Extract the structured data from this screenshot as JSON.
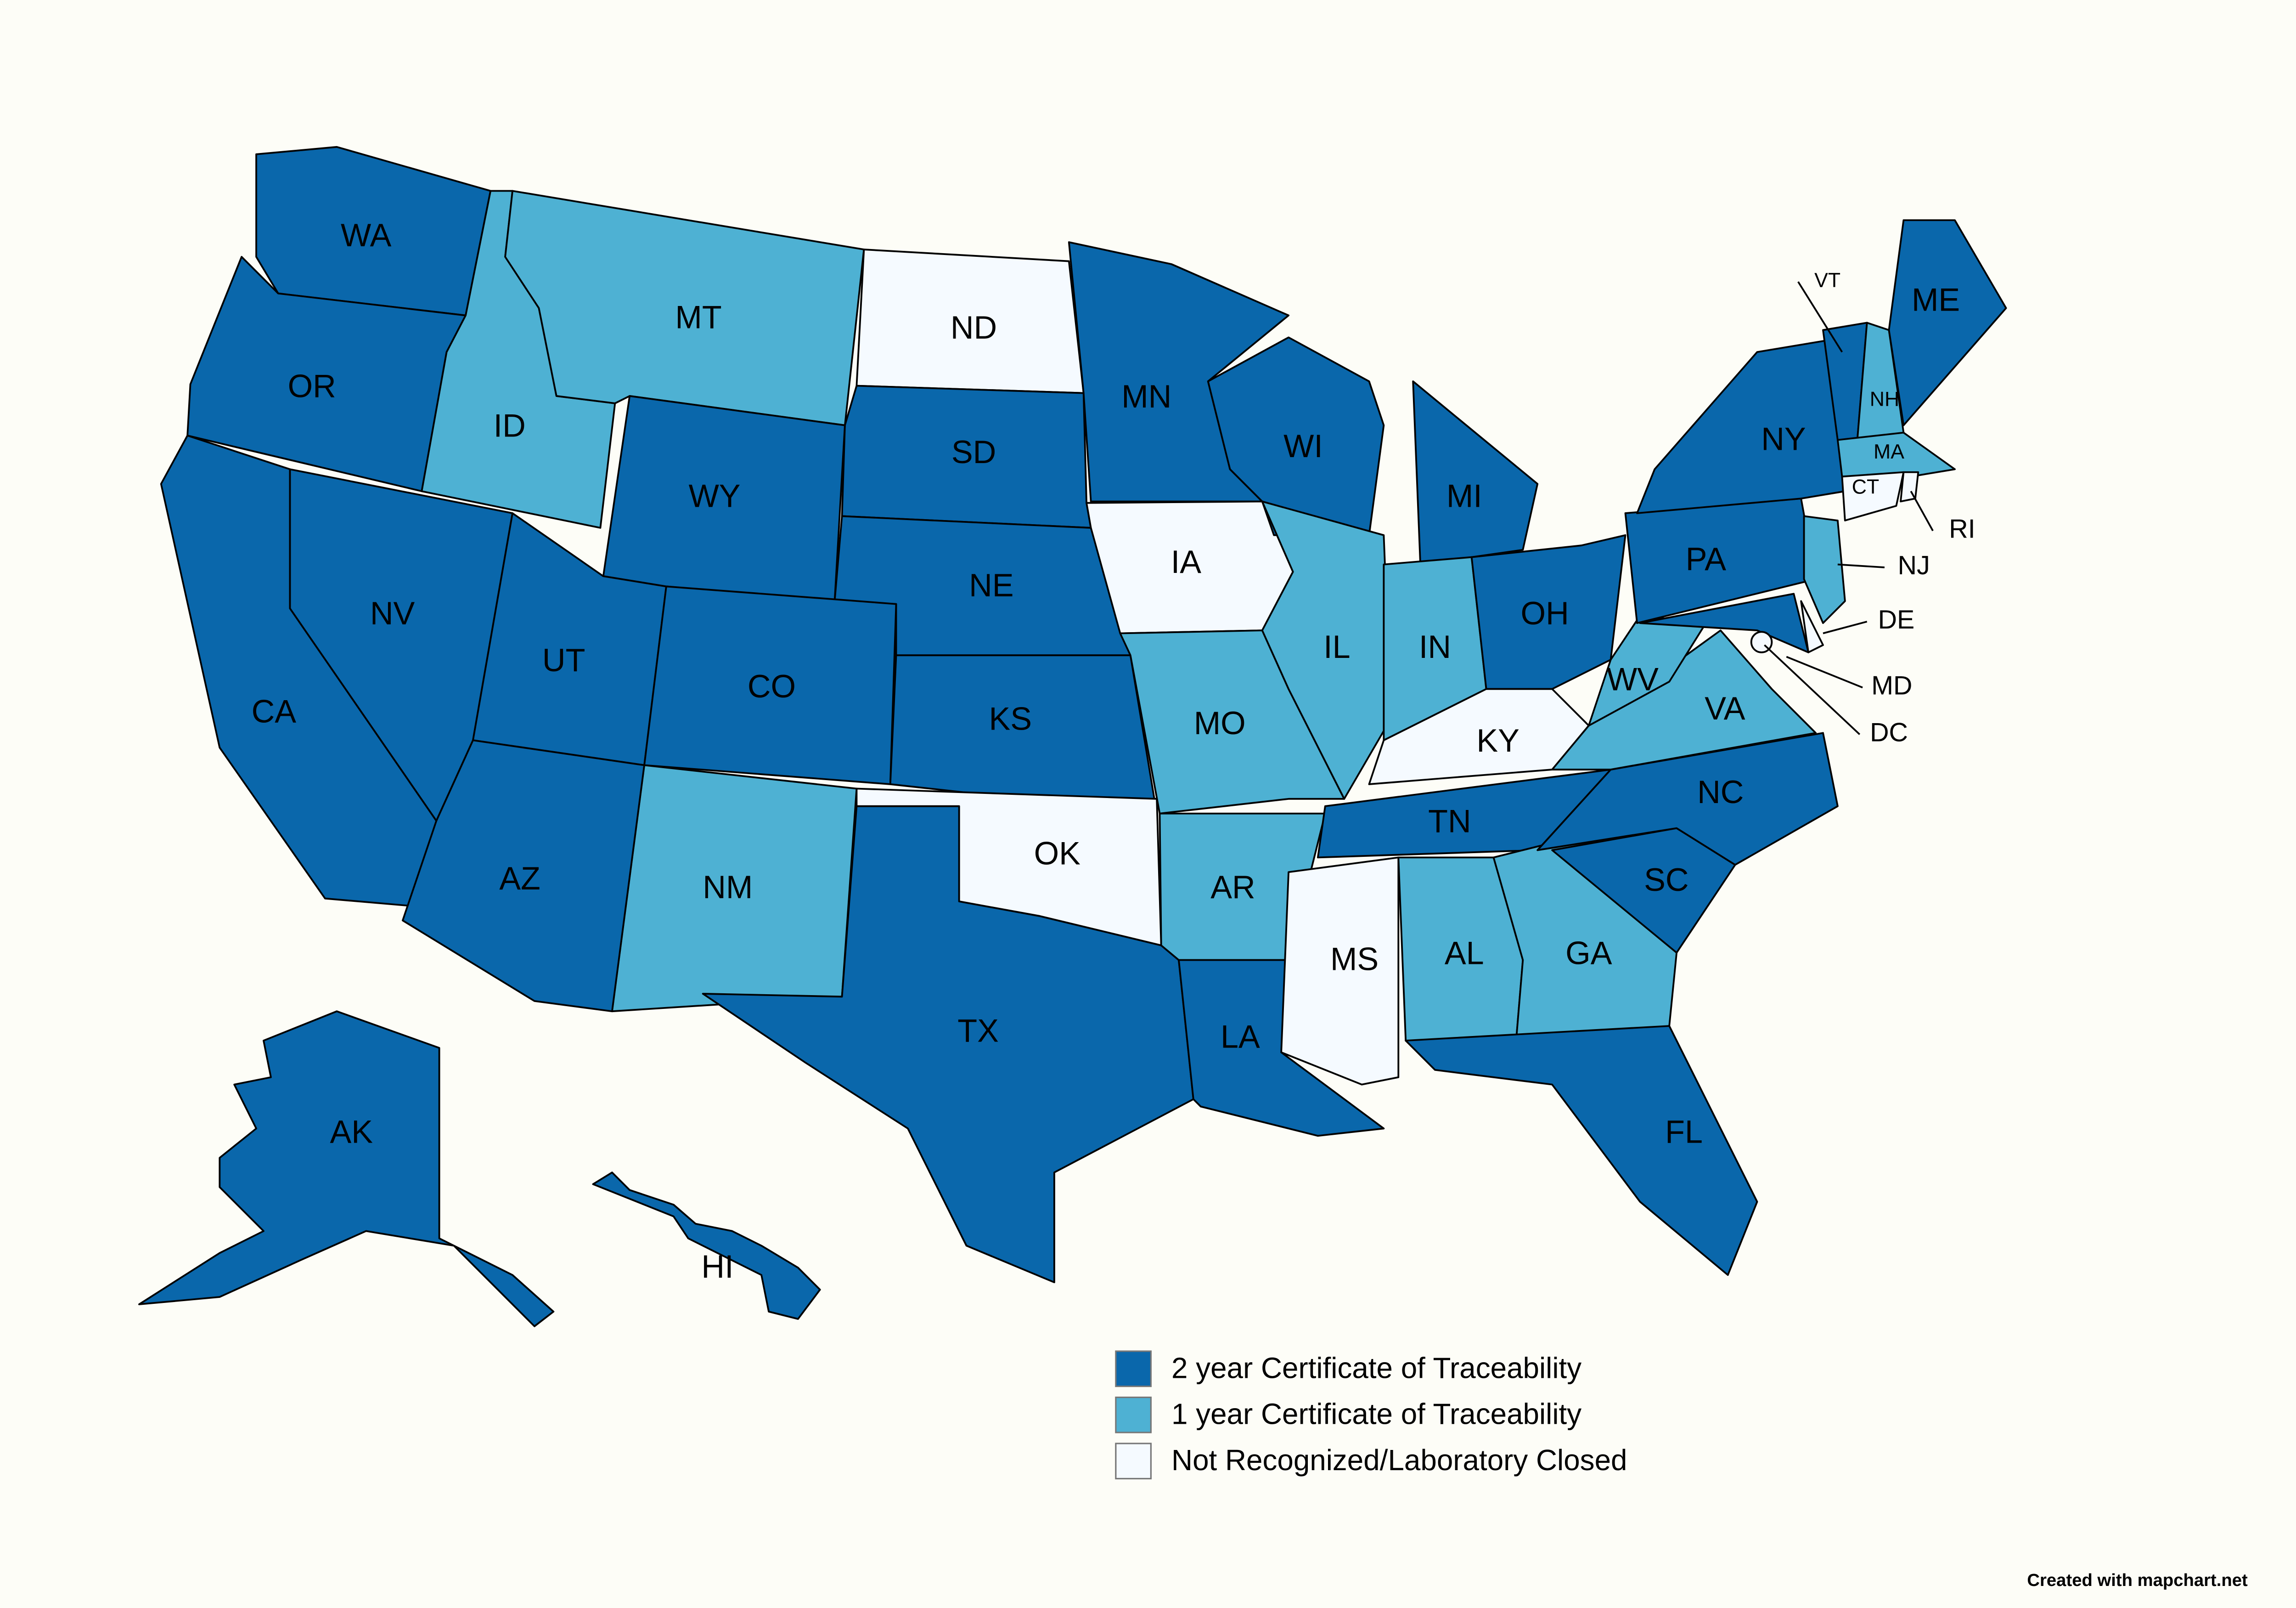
{
  "states": [
    {
      "label": "WA",
      "color": "#0a67ab"
    },
    {
      "label": "OR",
      "color": "#0a67ab"
    },
    {
      "label": "ID",
      "color": "#4eb1d3"
    },
    {
      "label": "MT",
      "color": "#4eb1d3"
    },
    {
      "label": "ND",
      "color": "#f5faff"
    },
    {
      "label": "SD",
      "color": "#0a67ab"
    },
    {
      "label": "WY",
      "color": "#0a67ab"
    },
    {
      "label": "NE",
      "color": "#0a67ab"
    },
    {
      "label": "NV",
      "color": "#0a67ab"
    },
    {
      "label": "CA",
      "color": "#0a67ab"
    },
    {
      "label": "UT",
      "color": "#0a67ab"
    },
    {
      "label": "CO",
      "color": "#0a67ab"
    },
    {
      "label": "KS",
      "color": "#0a67ab"
    },
    {
      "label": "OK",
      "color": "#f5faff"
    },
    {
      "label": "NM",
      "color": "#4eb1d3"
    },
    {
      "label": "AZ",
      "color": "#0a67ab"
    },
    {
      "label": "TX",
      "color": "#0a67ab"
    },
    {
      "label": "MN",
      "color": "#0a67ab"
    },
    {
      "label": "IA",
      "color": "#f5faff"
    },
    {
      "label": "MO",
      "color": "#4eb1d3"
    },
    {
      "label": "AR",
      "color": "#4eb1d3"
    },
    {
      "label": "LA",
      "color": "#0a67ab"
    },
    {
      "label": "WI",
      "color": "#0a67ab"
    },
    {
      "label": "IL",
      "color": "#4eb1d3"
    },
    {
      "label": "MI",
      "color": "#0a67ab"
    },
    {
      "label": "IN",
      "color": "#4eb1d3"
    },
    {
      "label": "OH",
      "color": "#0a67ab"
    },
    {
      "label": "KY",
      "color": "#f5faff"
    },
    {
      "label": "TN",
      "color": "#0a67ab"
    },
    {
      "label": "MS",
      "color": "#f5faff"
    },
    {
      "label": "AL",
      "color": "#4eb1d3"
    },
    {
      "label": "GA",
      "color": "#4eb1d3"
    },
    {
      "label": "FL",
      "color": "#0a67ab"
    },
    {
      "label": "SC",
      "color": "#0a67ab"
    },
    {
      "label": "NC",
      "color": "#0a67ab"
    },
    {
      "label": "VA",
      "color": "#4eb1d3"
    },
    {
      "label": "WV",
      "color": "#4eb1d3"
    },
    {
      "label": "PA",
      "color": "#0a67ab"
    },
    {
      "label": "NY",
      "color": "#0a67ab"
    },
    {
      "label": "MD",
      "color": "#0a67ab"
    },
    {
      "label": "DE",
      "color": "#f5faff"
    },
    {
      "label": "NJ",
      "color": "#4eb1d3"
    },
    {
      "label": "VT",
      "color": "#0a67ab"
    },
    {
      "label": "NH",
      "color": "#4eb1d3"
    },
    {
      "label": "ME",
      "color": "#0a67ab"
    },
    {
      "label": "MA",
      "color": "#4eb1d3"
    },
    {
      "label": "CT",
      "color": "#f5faff"
    },
    {
      "label": "RI",
      "color": "#f5faff"
    },
    {
      "label": "DC",
      "color": "#f5faff"
    },
    {
      "label": "AK",
      "color": "#0a67ab"
    },
    {
      "label": "HI",
      "color": "#0a67ab"
    }
  ],
  "legend": [
    {
      "label": "2 year Certificate of Traceability",
      "color": "#0a67ab"
    },
    {
      "label": "1 year Certificate of Traceability",
      "color": "#4eb1d3"
    },
    {
      "label": "Not Recognized/Laboratory Closed",
      "color": "#f5faff"
    }
  ],
  "credit": "Created with mapchart.net"
}
